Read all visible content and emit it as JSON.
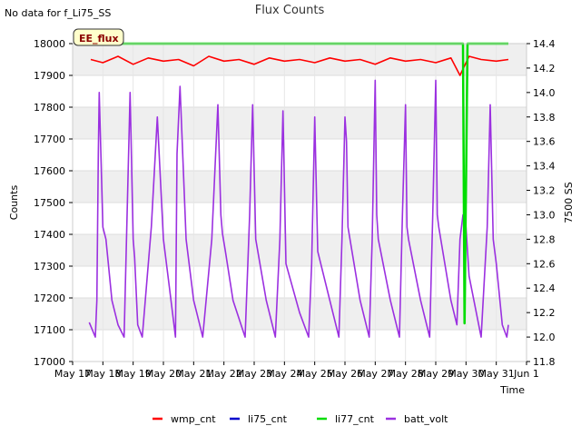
{
  "chart_data": {
    "type": "line",
    "title": "Flux Counts",
    "note": "No data for f_Li75_SS",
    "badge": "EE_flux",
    "xlabel": "Time",
    "ylabel": "Counts",
    "y2label": "7500 SS",
    "ylim": [
      17000,
      18000
    ],
    "y2lim": [
      11.8,
      14.4
    ],
    "xlim_days": [
      17,
      32
    ],
    "x_tick_labels": [
      "May 17",
      "May 18",
      "May 19",
      "May 20",
      "May 21",
      "May 22",
      "May 23",
      "May 24",
      "May 25",
      "May 26",
      "May 27",
      "May 28",
      "May 29",
      "May 30",
      "May 31",
      "Jun 1"
    ],
    "y_ticks": [
      17000,
      17100,
      17200,
      17300,
      17400,
      17500,
      17600,
      17700,
      17800,
      17900,
      18000
    ],
    "y2_ticks": [
      11.8,
      12.0,
      12.2,
      12.4,
      12.6,
      12.8,
      13.0,
      13.2,
      13.4,
      13.6,
      13.8,
      14.0,
      14.2,
      14.4
    ],
    "grid": true,
    "legend_position": "bottom",
    "series": [
      {
        "name": "wmp_cnt",
        "color": "#ff0000",
        "axis": "left",
        "x": [
          17.6,
          18,
          18.5,
          19,
          19.5,
          20,
          20.5,
          21,
          21.5,
          22,
          22.5,
          23,
          23.5,
          24,
          24.5,
          25,
          25.5,
          26,
          26.5,
          27,
          27.5,
          28,
          28.5,
          29,
          29.5,
          29.8,
          30.1,
          30.5,
          31,
          31.4
        ],
        "y": [
          17950,
          17940,
          17960,
          17935,
          17955,
          17945,
          17950,
          17930,
          17960,
          17945,
          17950,
          17935,
          17955,
          17945,
          17950,
          17940,
          17955,
          17945,
          17950,
          17935,
          17955,
          17945,
          17950,
          17940,
          17955,
          17900,
          17960,
          17950,
          17945,
          17950
        ]
      },
      {
        "name": "li75_cnt",
        "color": "#0000cc",
        "axis": "left",
        "x": [],
        "y": []
      },
      {
        "name": "li77_cnt",
        "color": "#00dd00",
        "axis": "left",
        "x": [
          17.6,
          29.9,
          29.95,
          30.05,
          31.4
        ],
        "y": [
          18000,
          18000,
          17120,
          18000,
          18000
        ]
      },
      {
        "name": "batt_volt",
        "color": "#9b30e0",
        "axis": "right",
        "x": [
          17.55,
          17.75,
          17.8,
          17.85,
          17.88,
          18.0,
          18.05,
          18.1,
          18.3,
          18.5,
          18.7,
          18.9,
          19.0,
          19.05,
          19.15,
          19.3,
          19.6,
          19.8,
          20.0,
          20.2,
          20.4,
          20.45,
          20.55,
          20.75,
          21.0,
          21.1,
          21.2,
          21.3,
          21.6,
          21.8,
          21.9,
          21.95,
          22.05,
          22.3,
          22.7,
          22.85,
          22.95,
          23.05,
          23.4,
          23.7,
          23.85,
          23.95,
          24.05,
          24.5,
          24.8,
          24.9,
          25.0,
          25.1,
          25.5,
          25.8,
          25.9,
          26.0,
          26.05,
          26.1,
          26.5,
          26.8,
          26.9,
          27.0,
          27.05,
          27.1,
          27.5,
          27.8,
          27.9,
          28.0,
          28.05,
          28.1,
          28.5,
          28.8,
          28.9,
          29.0,
          29.05,
          29.1,
          29.5,
          29.7,
          29.8,
          29.9,
          30.0,
          30.1,
          30.5,
          30.7,
          30.8,
          30.9,
          31.0,
          31.2,
          31.35,
          31.4
        ],
        "y": [
          12.12,
          12.0,
          12.3,
          13.5,
          14.0,
          12.9,
          12.85,
          12.8,
          12.3,
          12.1,
          12.0,
          14.0,
          12.8,
          12.65,
          12.1,
          12.0,
          12.9,
          13.8,
          12.8,
          12.4,
          12.0,
          13.5,
          14.05,
          12.8,
          12.3,
          12.2,
          12.1,
          12.0,
          12.8,
          13.9,
          13.0,
          12.85,
          12.7,
          12.3,
          12.0,
          13.0,
          13.9,
          12.8,
          12.3,
          12.0,
          12.8,
          13.85,
          12.6,
          12.2,
          12.0,
          12.6,
          13.8,
          12.7,
          12.3,
          12.0,
          12.8,
          13.8,
          13.6,
          12.9,
          12.3,
          12.0,
          12.8,
          14.1,
          13.0,
          12.8,
          12.3,
          12.0,
          13.0,
          13.9,
          12.9,
          12.8,
          12.3,
          12.0,
          13.0,
          14.1,
          13.0,
          12.9,
          12.3,
          12.1,
          12.8,
          13.0,
          12.9,
          12.5,
          12.0,
          12.9,
          13.9,
          12.8,
          12.6,
          12.1,
          12.0,
          12.1
        ]
      }
    ]
  }
}
